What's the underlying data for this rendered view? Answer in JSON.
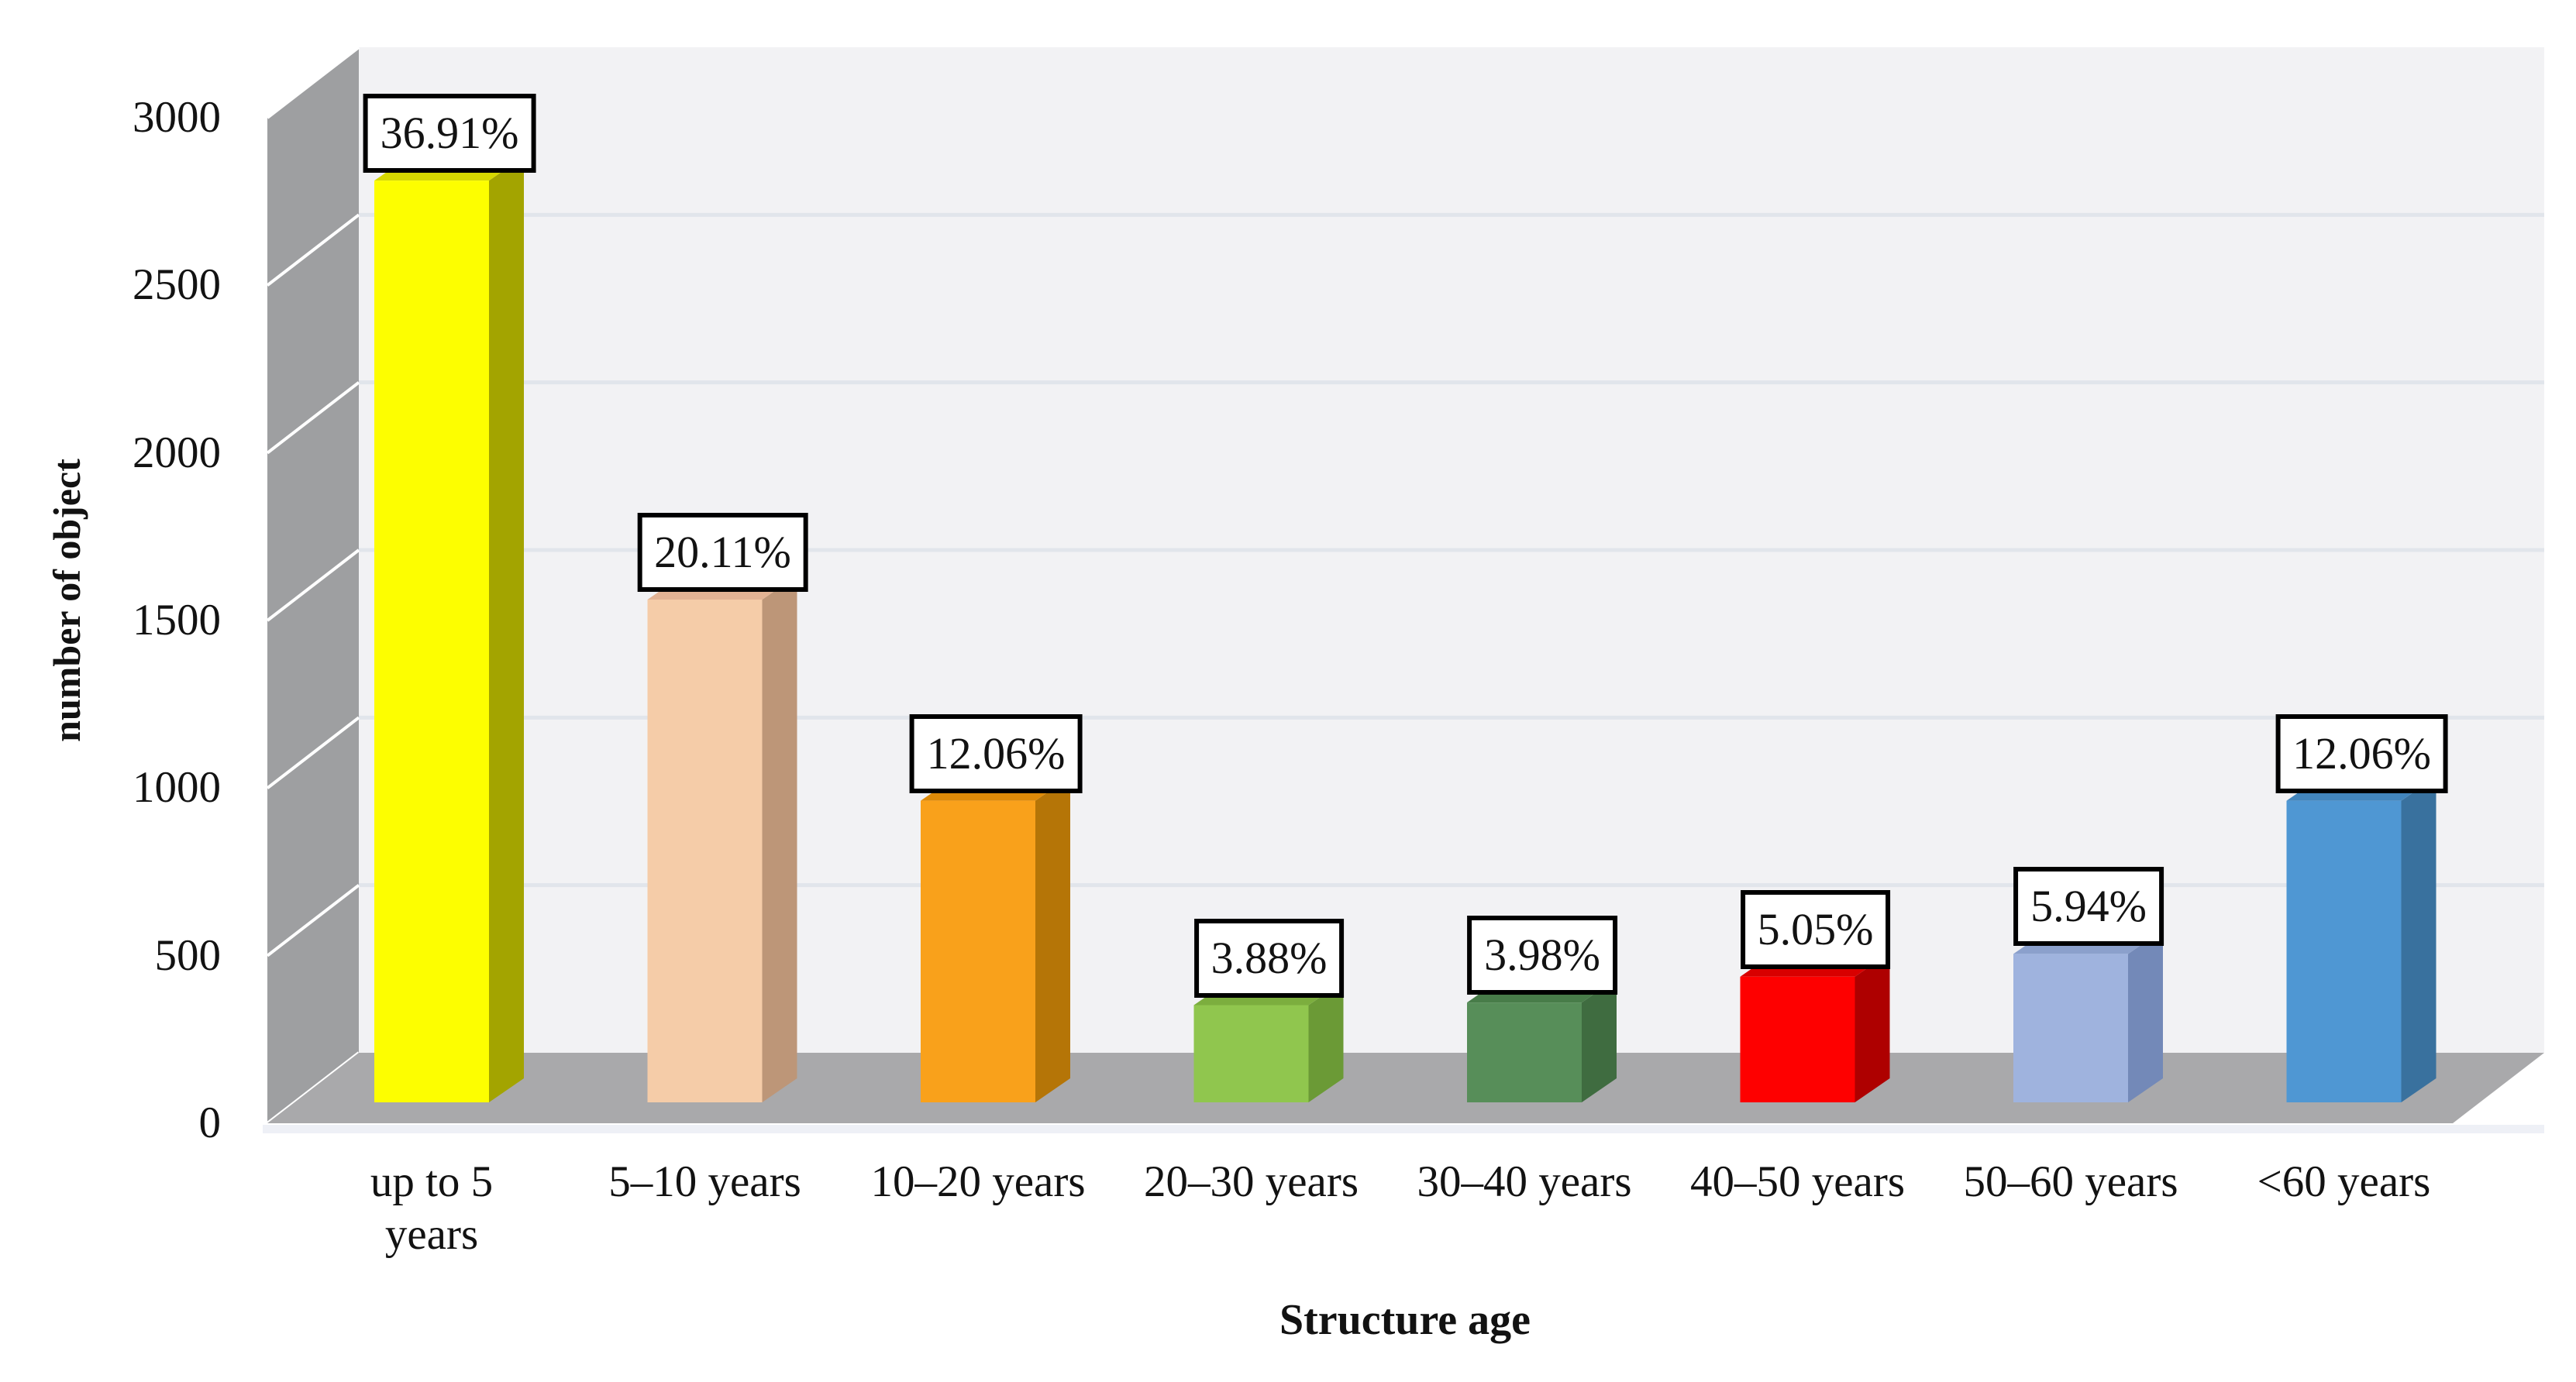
{
  "chart_data": {
    "type": "bar",
    "style": "3d-column",
    "title": "",
    "xlabel": "Structure age",
    "ylabel": "number of object",
    "categories": [
      "up to 5 years",
      "5–10 years",
      "10–20 years",
      "20–30 years",
      "30–40 years",
      "40–50 years",
      "50–60 years",
      "<60 years"
    ],
    "category_lines": [
      [
        "up to 5",
        "years"
      ],
      [
        "5–10 years"
      ],
      [
        "10–20 years"
      ],
      [
        "20–30 years"
      ],
      [
        "30–40 years"
      ],
      [
        "40–50 years"
      ],
      [
        "50–60 years"
      ],
      [
        "<60 years"
      ]
    ],
    "percent_labels": [
      "36.91%",
      "20.11%",
      "12.06%",
      "3.88%",
      "3.98%",
      "5.05%",
      "5.94%",
      "12.06%"
    ],
    "values_approx_count": [
      2750,
      1500,
      900,
      290,
      298,
      375,
      443,
      900
    ],
    "ylim": [
      0,
      3000
    ],
    "ytick_interval": 500,
    "ytick_labels": [
      "0",
      "500",
      "1000",
      "1500",
      "2000",
      "2500",
      "3000"
    ],
    "grid": true,
    "legend": false,
    "bar_colors": [
      {
        "name": "yellow",
        "front": "#fdfe00",
        "top": "#d6d800",
        "side": "#a3a400"
      },
      {
        "name": "peach",
        "front": "#f5cca8",
        "top": "#e2b394",
        "side": "#bd9678"
      },
      {
        "name": "orange",
        "front": "#f9a11b",
        "top": "#dd8a08",
        "side": "#b57507"
      },
      {
        "name": "light-green",
        "front": "#90c64e",
        "top": "#7cae3e",
        "side": "#6b9a36"
      },
      {
        "name": "dark-green",
        "front": "#578e59",
        "top": "#487c49",
        "side": "#3f6c40"
      },
      {
        "name": "red",
        "front": "#fe0000",
        "top": "#d80000",
        "side": "#ae0000"
      },
      {
        "name": "periwinkle",
        "front": "#9fb3de",
        "top": "#8ba0cc",
        "side": "#7389b8"
      },
      {
        "name": "steel-blue",
        "front": "#4f97d3",
        "top": "#4285bc",
        "side": "#39719e"
      }
    ],
    "frame_colors": {
      "back_wall": "#f2f2f4",
      "back_wall_grid": "#e1e5eb",
      "side_wall": "#9e9fa1",
      "side_wall_grid": "#ffffff",
      "floor": "#a9a9ab",
      "base_strip": "#eef0f6",
      "label_box_border": "#000000",
      "label_box_bg": "#ffffff",
      "text": "#121212"
    }
  }
}
